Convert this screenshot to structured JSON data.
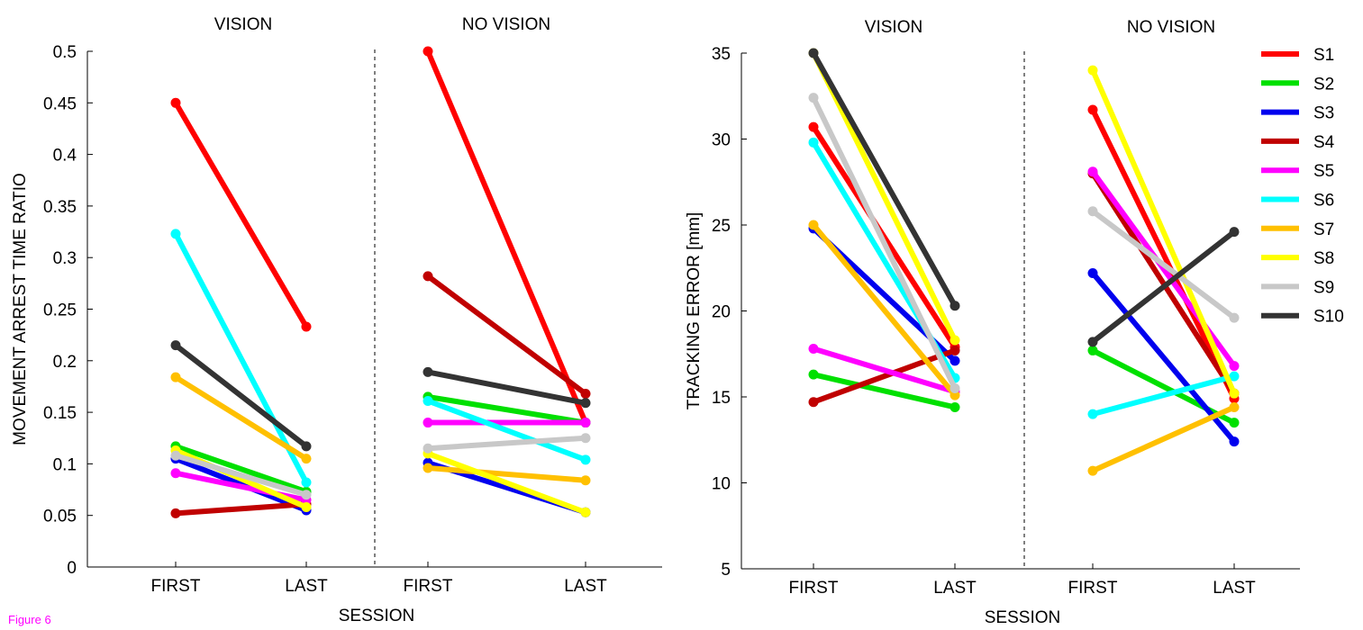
{
  "caption": "Figure 6",
  "series_colors": {
    "S1": "#ff0000",
    "S2": "#00e000",
    "S3": "#0000ee",
    "S4": "#c00000",
    "S5": "#ff00ff",
    "S6": "#00ffff",
    "S7": "#ffc000",
    "S8": "#ffff00",
    "S9": "#c8c8c8",
    "S10": "#333333"
  },
  "chart_data": [
    {
      "type": "line",
      "ylabel": "MOVEMENT ARREST TIME RATIO",
      "xlabel": "SESSION",
      "ylim": [
        0,
        0.5
      ],
      "yticks": [
        "0",
        "0.05",
        "0.1",
        "0.15",
        "0.2",
        "0.25",
        "0.3",
        "0.35",
        "0.4",
        "0.45",
        "0.5"
      ],
      "ytick_values": [
        0,
        0.05,
        0.1,
        0.15,
        0.2,
        0.25,
        0.3,
        0.35,
        0.4,
        0.45,
        0.5
      ],
      "panels": [
        {
          "condition": "VISION",
          "categories": [
            "FIRST",
            "LAST"
          ],
          "series": [
            {
              "name": "S1",
              "values": [
                0.45,
                0.233
              ]
            },
            {
              "name": "S2",
              "values": [
                0.117,
                0.073
              ]
            },
            {
              "name": "S3",
              "values": [
                0.105,
                0.055
              ]
            },
            {
              "name": "S4",
              "values": [
                0.052,
                0.061
              ]
            },
            {
              "name": "S5",
              "values": [
                0.091,
                0.065
              ]
            },
            {
              "name": "S6",
              "values": [
                0.323,
                0.082
              ]
            },
            {
              "name": "S7",
              "values": [
                0.184,
                0.105
              ]
            },
            {
              "name": "S8",
              "values": [
                0.113,
                0.058
              ]
            },
            {
              "name": "S9",
              "values": [
                0.108,
                0.07
              ]
            },
            {
              "name": "S10",
              "values": [
                0.215,
                0.117
              ]
            }
          ]
        },
        {
          "condition": "NO VISION",
          "categories": [
            "FIRST",
            "LAST"
          ],
          "series": [
            {
              "name": "S1",
              "values": [
                0.5,
                0.14
              ]
            },
            {
              "name": "S2",
              "values": [
                0.165,
                0.14
              ]
            },
            {
              "name": "S3",
              "values": [
                0.101,
                0.053
              ]
            },
            {
              "name": "S4",
              "values": [
                0.282,
                0.168
              ]
            },
            {
              "name": "S5",
              "values": [
                0.14,
                0.14
              ]
            },
            {
              "name": "S6",
              "values": [
                0.161,
                0.104
              ]
            },
            {
              "name": "S7",
              "values": [
                0.096,
                0.084
              ]
            },
            {
              "name": "S8",
              "values": [
                0.11,
                0.053
              ]
            },
            {
              "name": "S9",
              "values": [
                0.115,
                0.125
              ]
            },
            {
              "name": "S10",
              "values": [
                0.189,
                0.159
              ]
            }
          ]
        }
      ]
    },
    {
      "type": "line",
      "ylabel": "TRACKING ERROR [mm]",
      "xlabel": "SESSION",
      "ylim": [
        5,
        35
      ],
      "yticks": [
        "5",
        "10",
        "15",
        "20",
        "25",
        "30",
        "35"
      ],
      "ytick_values": [
        5,
        10,
        15,
        20,
        25,
        30,
        35
      ],
      "legend": [
        "S1",
        "S2",
        "S3",
        "S4",
        "S5",
        "S6",
        "S7",
        "S8",
        "S9",
        "S10"
      ],
      "legend_position": "top-right",
      "panels": [
        {
          "condition": "VISION",
          "categories": [
            "FIRST",
            "LAST"
          ],
          "series": [
            {
              "name": "S1",
              "values": [
                30.7,
                17.9
              ]
            },
            {
              "name": "S2",
              "values": [
                16.3,
                14.4
              ]
            },
            {
              "name": "S3",
              "values": [
                24.8,
                17.1
              ]
            },
            {
              "name": "S4",
              "values": [
                14.7,
                17.7
              ]
            },
            {
              "name": "S5",
              "values": [
                17.8,
                15.3
              ]
            },
            {
              "name": "S6",
              "values": [
                29.8,
                16.1
              ]
            },
            {
              "name": "S7",
              "values": [
                25.0,
                15.1
              ]
            },
            {
              "name": "S8",
              "values": [
                35.0,
                18.3
              ]
            },
            {
              "name": "S9",
              "values": [
                32.4,
                15.5
              ]
            },
            {
              "name": "S10",
              "values": [
                35.0,
                20.3
              ]
            }
          ]
        },
        {
          "condition": "NO VISION",
          "categories": [
            "FIRST",
            "LAST"
          ],
          "series": [
            {
              "name": "S1",
              "values": [
                31.7,
                14.9
              ]
            },
            {
              "name": "S2",
              "values": [
                17.7,
                13.5
              ]
            },
            {
              "name": "S3",
              "values": [
                22.2,
                12.4
              ]
            },
            {
              "name": "S4",
              "values": [
                28.0,
                15.2
              ]
            },
            {
              "name": "S5",
              "values": [
                28.1,
                16.8
              ]
            },
            {
              "name": "S6",
              "values": [
                14.0,
                16.2
              ]
            },
            {
              "name": "S7",
              "values": [
                10.7,
                14.4
              ]
            },
            {
              "name": "S8",
              "values": [
                34.0,
                15.2
              ]
            },
            {
              "name": "S9",
              "values": [
                25.8,
                19.6
              ]
            },
            {
              "name": "S10",
              "values": [
                18.2,
                24.6
              ]
            }
          ]
        }
      ]
    }
  ]
}
